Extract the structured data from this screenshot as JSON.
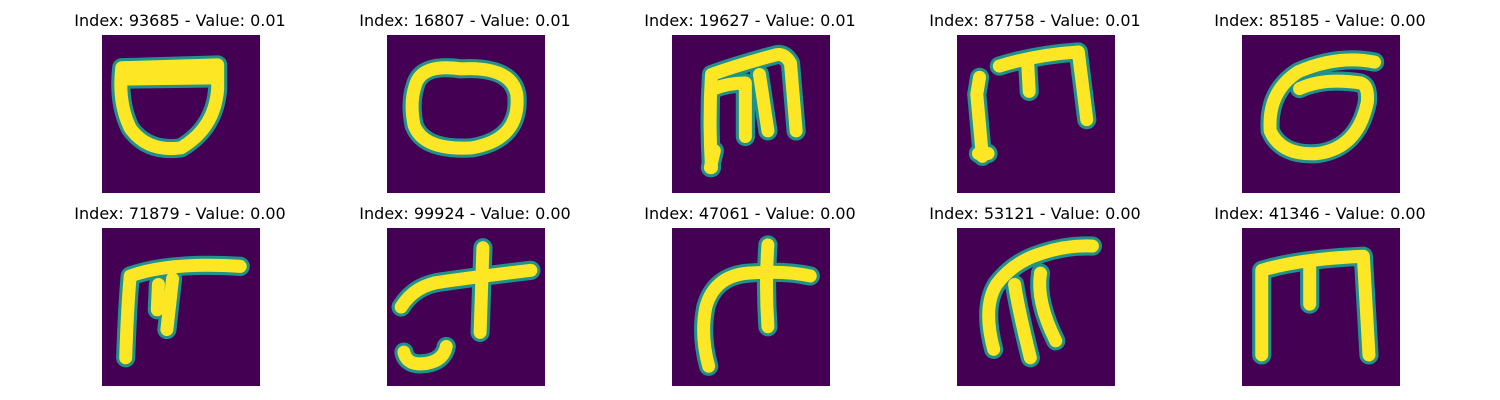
{
  "chart_data": {
    "type": "heatmap",
    "colormap": "viridis",
    "background_color": "#440154",
    "stroke_color": "#fde725",
    "edge_color": "#21918c",
    "panels": [
      {
        "title": "Index: 93685 - Value: 0.01",
        "glyph": "bowl"
      },
      {
        "title": "Index: 16807 - Value: 0.01",
        "glyph": "oval-ring"
      },
      {
        "title": "Index: 19627 - Value: 0.01",
        "glyph": "m-loop"
      },
      {
        "title": "Index: 87758 - Value: 0.01",
        "glyph": "bracket-m"
      },
      {
        "title": "Index: 85185 - Value: 0.00",
        "glyph": "tilted-o"
      },
      {
        "title": "Index: 71879 - Value: 0.00",
        "glyph": "pi-flag"
      },
      {
        "title": "Index: 99924 - Value: 0.00",
        "glyph": "cross-hook"
      },
      {
        "title": "Index: 47061 - Value: 0.00",
        "glyph": "arched-cross"
      },
      {
        "title": "Index: 53121 - Value: 0.00",
        "glyph": "swoosh-pi"
      },
      {
        "title": "Index: 41346 - Value: 0.00",
        "glyph": "square-m"
      }
    ]
  }
}
